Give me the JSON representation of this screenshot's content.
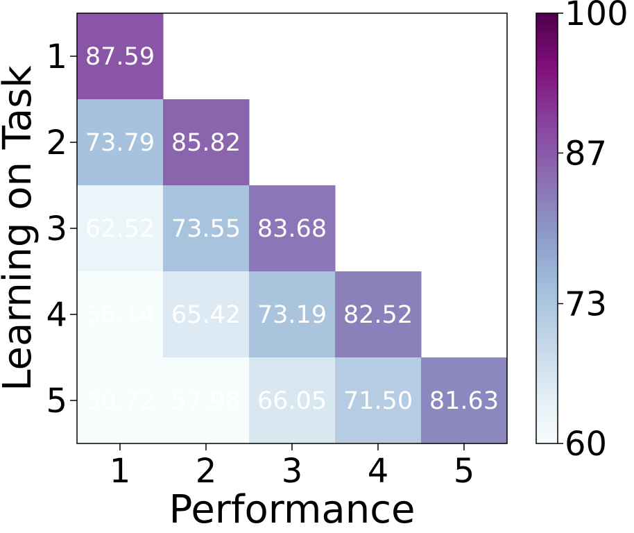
{
  "chart_data": {
    "type": "heatmap",
    "title": "",
    "xlabel": "Performance",
    "ylabel": "Learning on Task",
    "x_categories": [
      "1",
      "2",
      "3",
      "4",
      "5"
    ],
    "y_categories": [
      "1",
      "2",
      "3",
      "4",
      "5"
    ],
    "rows": [
      [
        "87.59",
        null,
        null,
        null,
        null
      ],
      [
        "73.79",
        "85.82",
        null,
        null,
        null
      ],
      [
        "62.52",
        "73.55",
        "83.68",
        null,
        null
      ],
      [
        "56.14",
        "65.42",
        "73.19",
        "82.52",
        null
      ],
      [
        "50.72",
        "57.98",
        "66.05",
        "71.50",
        "81.63"
      ]
    ],
    "colorbar": {
      "range": [
        60,
        100
      ],
      "ticks": [
        "60",
        "73",
        "87",
        "100"
      ],
      "colormap": "BuPu",
      "stops": [
        "#f7fcfd",
        "#e0ecf4",
        "#bfd3e6",
        "#9ebcda",
        "#8c96c6",
        "#8c6bb1",
        "#88419d",
        "#810f7c",
        "#4d004b"
      ]
    },
    "grid": false,
    "legend": "none"
  }
}
